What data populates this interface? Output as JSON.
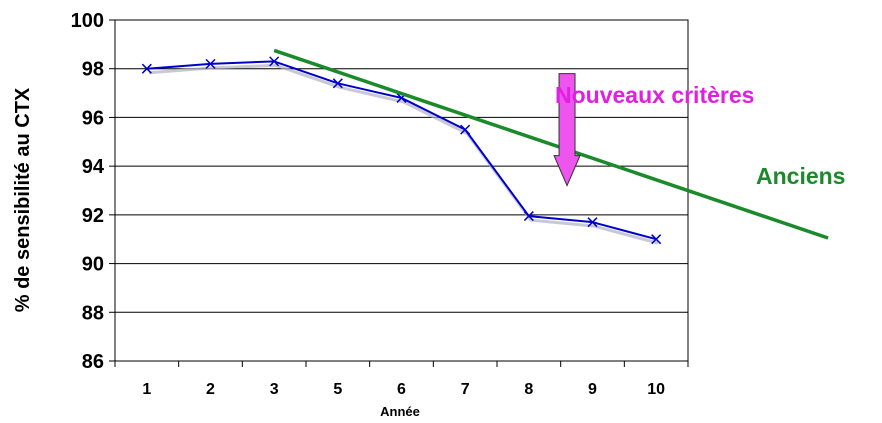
{
  "chart_data": {
    "type": "line",
    "categories": [
      "1",
      "2",
      "3",
      "5",
      "6",
      "7",
      "8",
      "9",
      "10"
    ],
    "series": [
      {
        "values": [
          98.0,
          98.2,
          98.3,
          97.4,
          96.8,
          95.5,
          91.95,
          91.7,
          91.0
        ],
        "color": "#0000c8"
      }
    ],
    "xlabel": "Année",
    "ylabel": "% de sensibilité au CTX",
    "ylim": [
      86,
      100
    ],
    "yticks": [
      86,
      88,
      90,
      92,
      94,
      96,
      98,
      100
    ],
    "grid": true,
    "trendline": {
      "from": {
        "category_index": 2.0,
        "y": 98.75
      },
      "to": {
        "category_index": 10.7,
        "y": 91.05
      },
      "color": "#1a8a2a"
    },
    "arrow": {
      "category_index": 6.6,
      "from_y": 97.8,
      "to_y": 93.2,
      "color": "#ee55ee"
    },
    "annotations": [
      {
        "text": "Nouveaux critères",
        "color": "#e020e0"
      },
      {
        "text": "Anciens",
        "color": "#1a8a2a"
      }
    ]
  }
}
